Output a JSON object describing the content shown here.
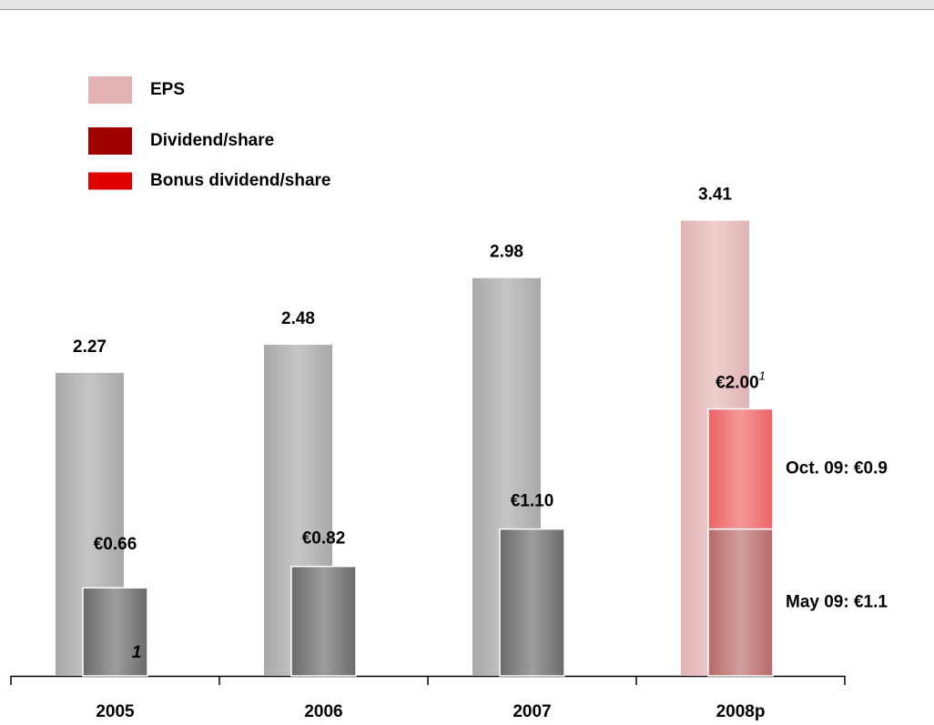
{
  "chart_data": {
    "type": "bar",
    "categories": [
      "2005",
      "2006",
      "2007",
      "2008p"
    ],
    "series": [
      {
        "name": "EPS",
        "color": "#e3b3b3",
        "bar_colors": [
          "#a8a8a8",
          "#a8a8a8",
          "#a8a8a8",
          "#e3b3b3"
        ],
        "values": [
          2.27,
          2.48,
          2.98,
          3.41
        ]
      },
      {
        "name": "Dividend/share",
        "color": "#a00000",
        "bar_colors": [
          "#6a6a6a",
          "#6a6a6a",
          "#6a6a6a",
          "#b86a6a"
        ],
        "values": [
          0.66,
          0.82,
          1.1,
          1.1
        ],
        "value_labels": [
          "€0.66",
          "€0.82",
          "€1.10",
          "May 09: €1.1"
        ]
      },
      {
        "name": "Bonus dividend/share",
        "color": "#e00000",
        "bar_colors": [
          null,
          null,
          null,
          "#ec6262"
        ],
        "values": [
          null,
          null,
          null,
          0.9
        ],
        "value_labels": [
          null,
          null,
          null,
          "Oct. 09: €0.9"
        ]
      }
    ],
    "annotations": [
      {
        "text": "€2.00",
        "superscript": "1"
      },
      {
        "text": "1"
      }
    ],
    "ylim": [
      0,
      4
    ]
  }
}
